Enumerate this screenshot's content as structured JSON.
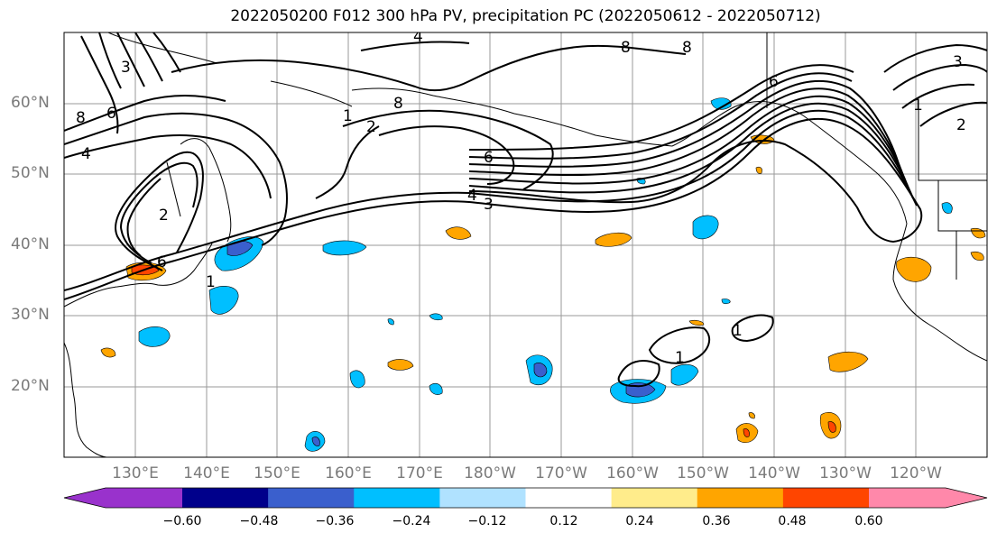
{
  "title": "2022050200 F012 300 hPa PV, precipitation PC (2022050612 - 2022050712)",
  "lat_labels": [
    "60°N",
    "50°N",
    "40°N",
    "30°N",
    "20°N"
  ],
  "lon_labels": [
    "130°E",
    "140°E",
    "150°E",
    "160°E",
    "170°E",
    "180°W",
    "170°W",
    "160°W",
    "150°W",
    "140°W",
    "130°W",
    "120°W"
  ],
  "pv_contour_labels": [
    "8",
    "6",
    "4",
    "3",
    "2",
    "1"
  ],
  "colorbar": {
    "ticks": [
      "−0.60",
      "−0.48",
      "−0.36",
      "−0.24",
      "−0.12",
      "0.12",
      "0.24",
      "0.36",
      "0.48",
      "0.60"
    ],
    "colors": [
      "#9932cc",
      "#00008b",
      "#3a5fcd",
      "#00bfff",
      "#b0e2ff",
      "#ffffff",
      "#ffec8b",
      "#ffa500",
      "#ff4500",
      "#b22222",
      "#ff88aa"
    ]
  }
}
